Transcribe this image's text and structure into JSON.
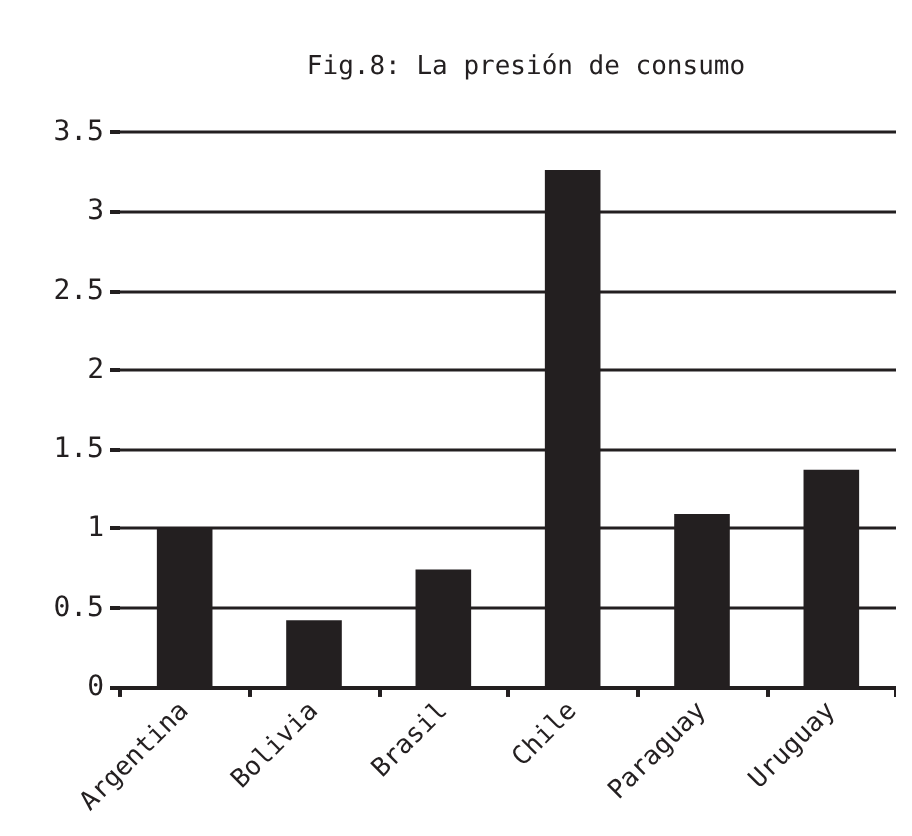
{
  "chart_data": {
    "type": "bar",
    "title": "Fig.8: La presión de consumo",
    "categories": [
      "Argentina",
      "Bolivia",
      "Brasil",
      "Chile",
      "Paraguay",
      "Uruguay"
    ],
    "values": [
      1.0,
      0.42,
      0.74,
      3.26,
      1.09,
      1.37
    ],
    "color": "#231f20",
    "ylim": [
      0,
      3.5
    ],
    "yticks": [
      0,
      0.5,
      1,
      1.5,
      2,
      2.5,
      3,
      3.5
    ],
    "grid": true
  }
}
